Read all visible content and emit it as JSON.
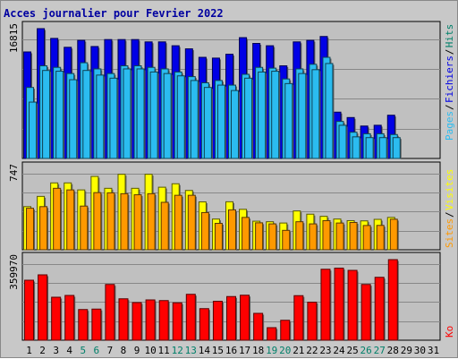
{
  "title": "Acces journalier pour Fevrier 2022",
  "x_days": [
    "1",
    "2",
    "3",
    "4",
    "5",
    "6",
    "7",
    "8",
    "9",
    "10",
    "11",
    "12",
    "13",
    "14",
    "15",
    "16",
    "17",
    "18",
    "19",
    "20",
    "21",
    "22",
    "23",
    "24",
    "25",
    "26",
    "27",
    "28",
    "29",
    "30",
    "31"
  ],
  "weekend_days": [
    "5",
    "6",
    "12",
    "13",
    "19",
    "20",
    "26",
    "27"
  ],
  "colors": {
    "hits": "#0000e6",
    "files": "#2bbcf0",
    "visits": "#ffff00",
    "sites": "#ff9900",
    "ko": "#ff0000",
    "weekend": "#00806a",
    "weekday": "#000000",
    "gridline": "#888888",
    "panel_bg": "#c0c0c0"
  },
  "chart_data": [
    {
      "type": "bar",
      "name": "hits-files-pages",
      "ymax_label": "16815",
      "ylim": [
        0,
        16815
      ],
      "legend": [
        "Pages",
        "Fichiers",
        "Hits"
      ],
      "series": [
        {
          "name": "Hits",
          "values": [
            13800,
            16815,
            15550,
            14400,
            15300,
            14500,
            15400,
            15400,
            15400,
            15100,
            15100,
            14600,
            14200,
            13100,
            13000,
            13500,
            15650,
            14900,
            14600,
            12000,
            15100,
            15300,
            15800,
            6000,
            5300,
            4200,
            4300,
            5600,
            null,
            null,
            null
          ]
        },
        {
          "name": "Fichiers",
          "values": [
            9200,
            12000,
            11800,
            11000,
            12400,
            11600,
            11000,
            12000,
            12000,
            11800,
            11600,
            11200,
            10600,
            9800,
            10100,
            9500,
            10900,
            11800,
            11700,
            10300,
            11600,
            12200,
            13100,
            4800,
            3400,
            3200,
            3200,
            3100,
            null,
            null,
            null
          ]
        },
        {
          "name": "Pages",
          "values": [
            7300,
            11400,
            11300,
            10200,
            11400,
            10800,
            10400,
            11600,
            11600,
            11200,
            11000,
            10700,
            10100,
            9200,
            9500,
            8800,
            10400,
            11200,
            11300,
            9700,
            11000,
            11500,
            12300,
            4300,
            2800,
            2700,
            2700,
            2700,
            null,
            null,
            null
          ]
        }
      ]
    },
    {
      "type": "bar",
      "name": "visits-sites",
      "ymax_label": "747",
      "ylim": [
        0,
        747
      ],
      "legend": [
        "Sites",
        "Visites"
      ],
      "series": [
        {
          "name": "Visites",
          "values": [
            400,
            495,
            620,
            620,
            555,
            680,
            570,
            700,
            570,
            700,
            580,
            612,
            550,
            444,
            285,
            445,
            375,
            265,
            260,
            248,
            360,
            330,
            310,
            285,
            270,
            268,
            282,
            300,
            null,
            null,
            null
          ]
        },
        {
          "name": "Sites",
          "values": [
            385,
            400,
            570,
            555,
            405,
            530,
            528,
            520,
            510,
            520,
            440,
            505,
            505,
            345,
            245,
            370,
            300,
            250,
            240,
            180,
            260,
            240,
            270,
            248,
            253,
            225,
            226,
            283,
            null,
            null,
            null
          ]
        }
      ]
    },
    {
      "type": "bar",
      "name": "ko",
      "ymax_label": "359970",
      "ylim": [
        0,
        359970
      ],
      "legend": [
        "Ko"
      ],
      "series": [
        {
          "name": "Ko",
          "values": [
            268000,
            292000,
            192000,
            200000,
            137000,
            139000,
            249000,
            185000,
            168000,
            180000,
            177000,
            167000,
            205000,
            141000,
            174000,
            195000,
            201000,
            120000,
            56000,
            89000,
            199000,
            170000,
            317000,
            322000,
            312000,
            249000,
            281000,
            359970,
            null,
            null,
            null
          ]
        }
      ]
    }
  ]
}
